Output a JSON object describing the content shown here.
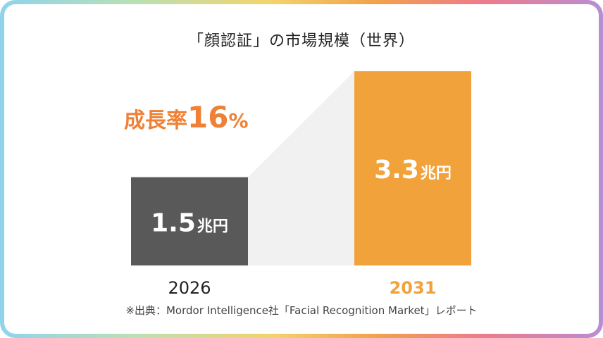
{
  "title": "「顔認証」の市場規模（世界）",
  "growth": {
    "label": "成長率",
    "value": "16",
    "unit": "%"
  },
  "source": "※出典：Mordor Intelligence社「Facial Recognition Market」レポート",
  "chart_data": {
    "type": "bar",
    "title": "「顔認証」の市場規模（世界）",
    "categories": [
      "2026",
      "2031"
    ],
    "values": [
      1.5,
      3.3
    ],
    "value_labels": [
      "1.5",
      "3.3"
    ],
    "unit": "兆円",
    "colors": [
      "#595959",
      "#f2a23a"
    ],
    "category_colors": [
      "#222222",
      "#f2a23a"
    ],
    "grid": false,
    "legend": "none"
  }
}
